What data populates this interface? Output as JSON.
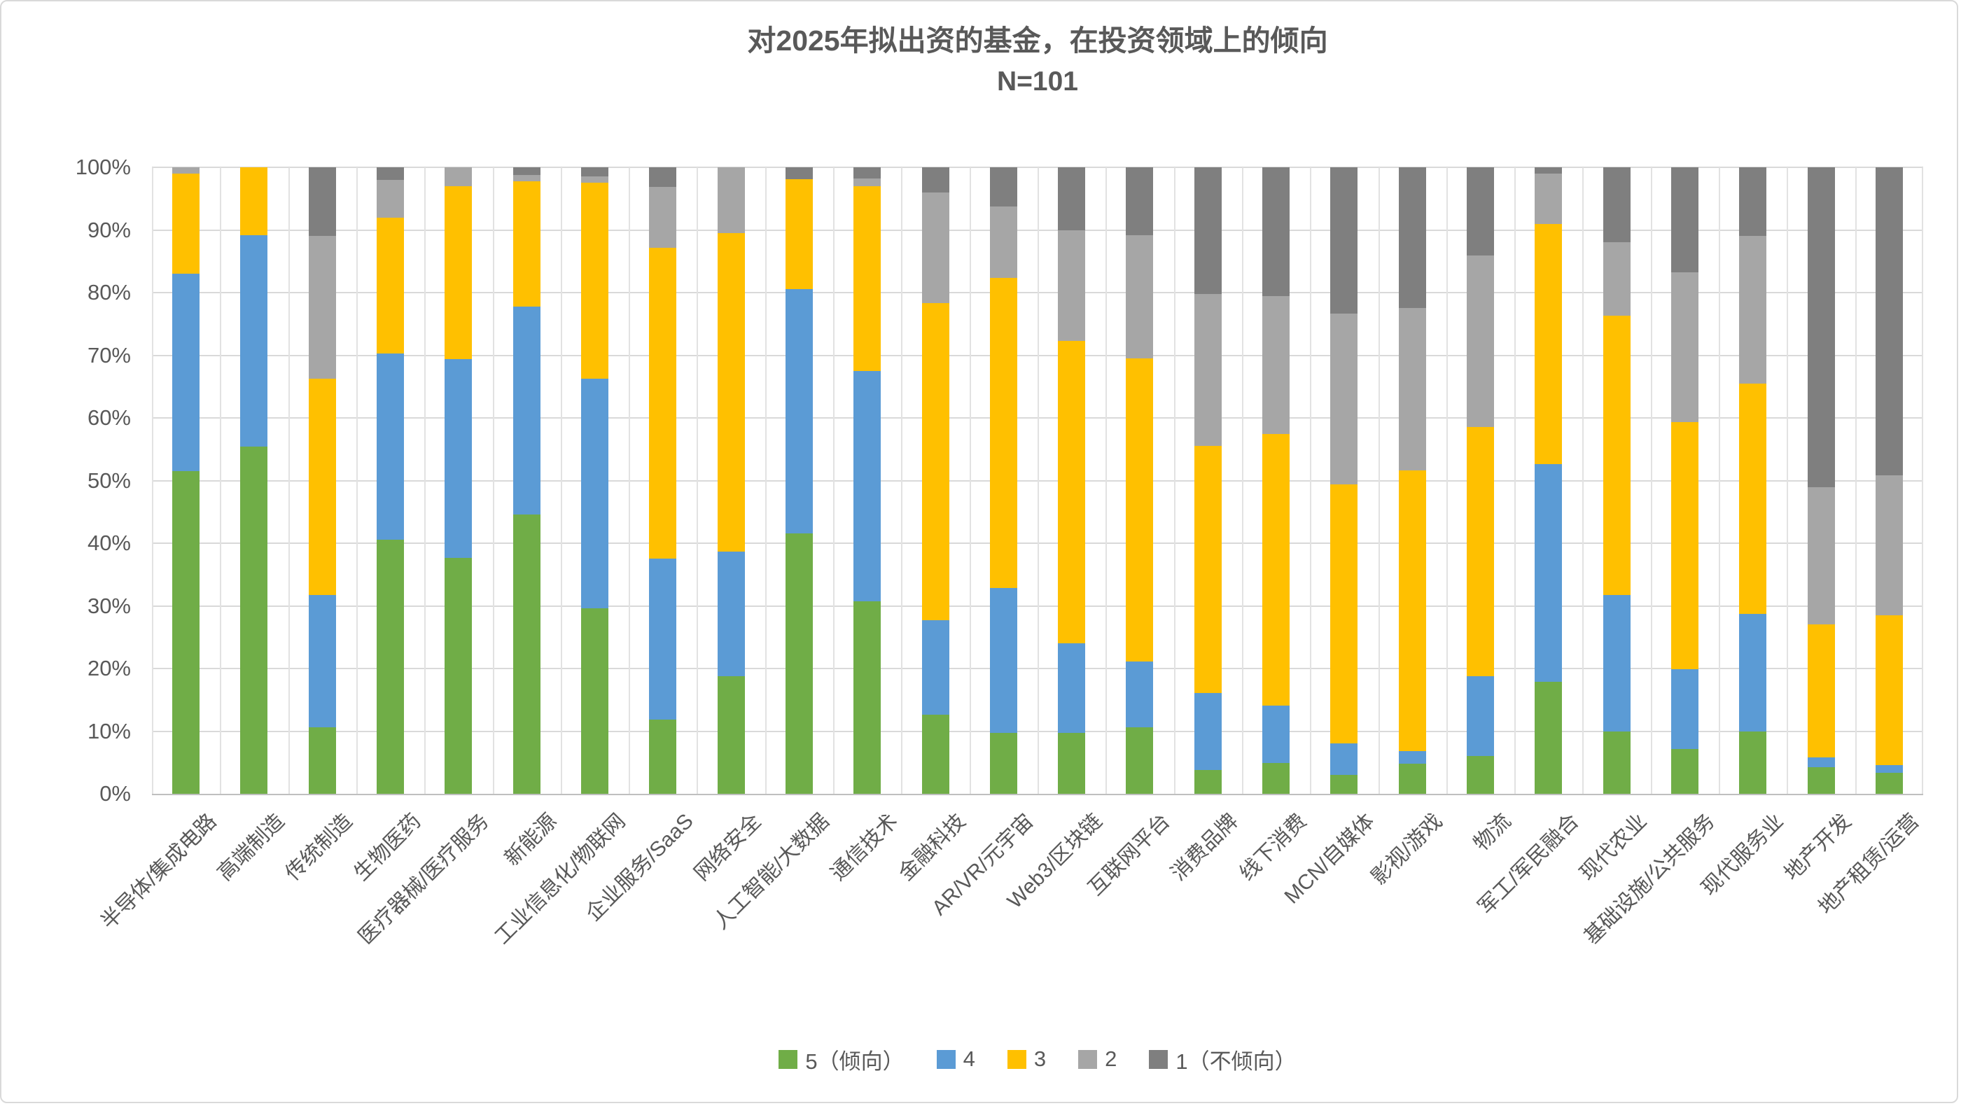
{
  "header": {
    "title": "对2025年拟出资的基金，在投资领域上的倾向",
    "subtitle": "N=101"
  },
  "chart_data": {
    "type": "bar",
    "variant": "stacked-100-percent-column",
    "title": "对2025年拟出资的基金，在投资领域上的倾向",
    "subtitle": "N=101",
    "unit": "percent",
    "grid": true,
    "legend_position": "bottom",
    "y_axis": {
      "min": 0,
      "max": 100,
      "tick_step": 10,
      "ticks": [
        "0%",
        "10%",
        "20%",
        "30%",
        "40%",
        "50%",
        "60%",
        "70%",
        "80%",
        "90%",
        "100%"
      ]
    },
    "categories": [
      "半导体/集成电路",
      "高端制造",
      "传统制造",
      "生物医药",
      "医疗器械/医疗服务",
      "新能源",
      "工业信息化/物联网",
      "企业服务/SaaS",
      "网络安全",
      "人工智能/大数据",
      "通信技术",
      "金融科技",
      "AR/VR/元宇宙",
      "Web3/区块链",
      "互联网平台",
      "消费品牌",
      "线下消费",
      "MCN/自媒体",
      "影视/游戏",
      "物流",
      "军工/军民融合",
      "现代农业",
      "基础设施/公共服务",
      "现代服务业",
      "地产开发",
      "地产租赁/运营"
    ],
    "series": [
      {
        "name": "5（倾向）",
        "color": "#70AD47",
        "values": [
          51.5,
          55.4,
          10.6,
          40.6,
          37.6,
          44.6,
          29.6,
          11.9,
          18.8,
          41.6,
          30.7,
          12.6,
          9.7,
          9.7,
          10.6,
          3.8,
          4.9,
          3.0,
          4.8,
          6.0,
          17.9,
          9.9,
          7.1,
          10.0,
          4.2,
          3.4
        ]
      },
      {
        "name": "4",
        "color": "#5B9BD5",
        "values": [
          31.5,
          33.8,
          21.1,
          29.7,
          31.8,
          33.2,
          36.7,
          25.7,
          19.9,
          39.0,
          36.8,
          15.1,
          23.2,
          14.3,
          10.5,
          12.3,
          9.2,
          5.0,
          2.0,
          12.8,
          34.7,
          21.8,
          12.8,
          18.7,
          1.6,
          1.2
        ]
      },
      {
        "name": "3",
        "color": "#FFC000",
        "values": [
          16.0,
          10.8,
          34.6,
          21.7,
          27.6,
          20.0,
          31.2,
          49.6,
          50.8,
          17.5,
          29.5,
          50.6,
          49.4,
          48.3,
          48.4,
          39.4,
          43.3,
          41.4,
          44.8,
          39.8,
          38.4,
          44.6,
          39.4,
          36.8,
          21.2,
          23.9
        ]
      },
      {
        "name": "2",
        "color": "#A6A6A6",
        "values": [
          1.0,
          0.0,
          22.7,
          6.0,
          3.0,
          1.0,
          1.0,
          9.7,
          10.5,
          0.0,
          1.2,
          17.7,
          11.4,
          17.7,
          19.7,
          24.3,
          22.1,
          27.2,
          25.9,
          27.3,
          8.0,
          11.7,
          24.0,
          23.5,
          21.9,
          22.3
        ]
      },
      {
        "name": "1（不倾向）",
        "color": "#7F7F7F",
        "values": [
          0.0,
          0.0,
          11.0,
          2.0,
          0.0,
          1.2,
          1.5,
          3.1,
          0.0,
          1.9,
          1.8,
          4.0,
          6.3,
          10.0,
          10.8,
          20.2,
          20.5,
          23.4,
          22.5,
          14.1,
          1.0,
          12.0,
          16.7,
          11.0,
          51.1,
          49.2
        ]
      }
    ],
    "colors": {
      "grid": "#D9D9D9",
      "axis": "#BFBFBF",
      "text": "#595959",
      "background": "#FFFFFF"
    }
  }
}
